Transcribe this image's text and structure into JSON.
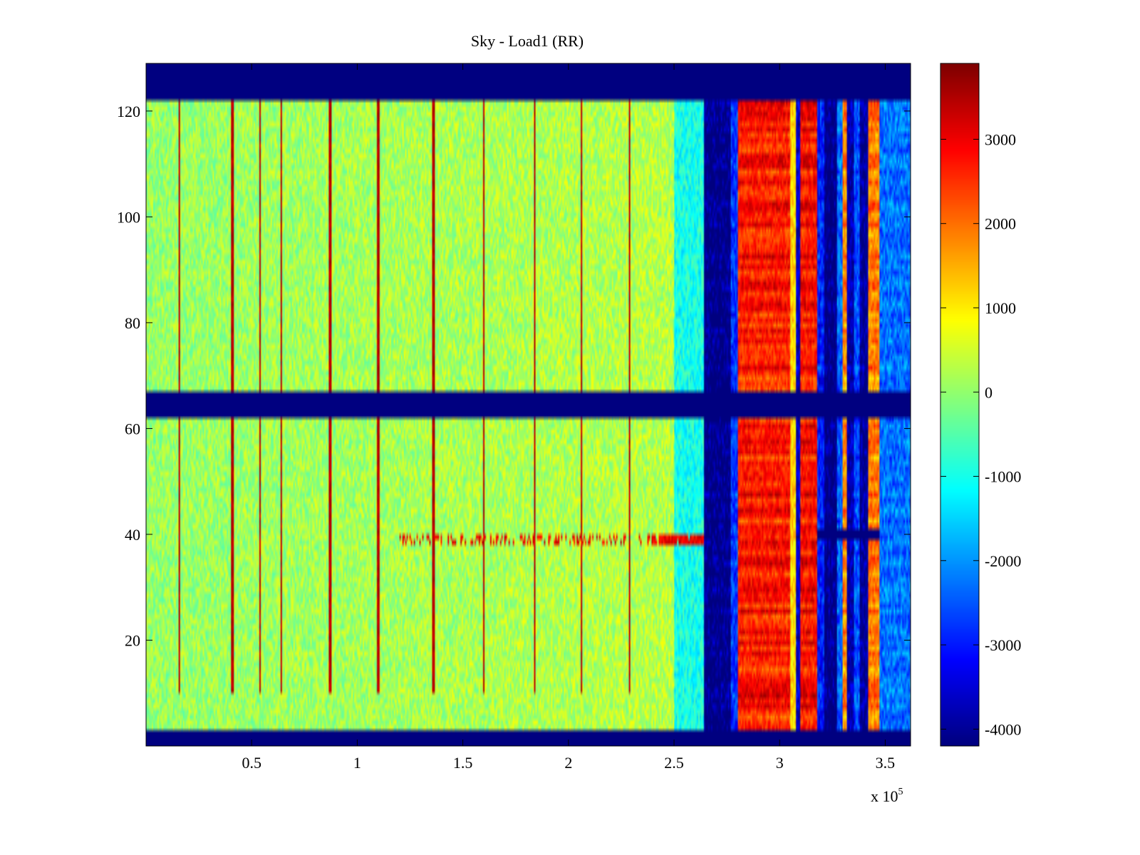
{
  "chart_data": {
    "type": "heatmap",
    "title": "Sky - Load1 (RR)",
    "xlabel": "",
    "ylabel": "",
    "x_multiplier_label": {
      "prefix": "x 10",
      "exponent": "5"
    },
    "xlim": [
      0,
      3.62
    ],
    "ylim": [
      0,
      129
    ],
    "x_ticks": [
      0.5,
      1,
      1.5,
      2,
      2.5,
      3,
      3.5
    ],
    "x_tick_labels": [
      "0.5",
      "1",
      "1.5",
      "2",
      "2.5",
      "3",
      "3.5"
    ],
    "y_ticks": [
      20,
      40,
      60,
      80,
      100,
      120
    ],
    "y_tick_labels": [
      "20",
      "40",
      "60",
      "80",
      "100",
      "120"
    ],
    "colorbar": {
      "colormap": "jet",
      "clim": [
        -4200,
        3900
      ],
      "ticks": [
        -4000,
        -3000,
        -2000,
        -1000,
        0,
        1000,
        2000,
        3000
      ],
      "tick_labels": [
        "-4000",
        "-3000",
        "-2000",
        "-1000",
        "0",
        "1000",
        "2000",
        "3000"
      ],
      "position": "right"
    },
    "masked_rows": [
      [
        0,
        3
      ],
      [
        62,
        67
      ],
      [
        122,
        129
      ]
    ],
    "rfi_row": 39,
    "spike_columns_x": [
      0.156,
      0.41,
      0.54,
      0.64,
      0.87,
      1.1,
      1.36,
      1.6,
      1.84,
      2.06,
      2.29
    ],
    "column_segments": [
      {
        "x_start": 0.0,
        "x_end": 2.5,
        "mean_value": 200
      },
      {
        "x_start": 2.5,
        "x_end": 2.64,
        "mean_value": -1100
      },
      {
        "x_start": 2.64,
        "x_end": 2.77,
        "mean_value": -4200
      },
      {
        "x_start": 2.77,
        "x_end": 2.8,
        "mean_value": -2800
      },
      {
        "x_start": 2.8,
        "x_end": 3.05,
        "mean_value": 2700
      },
      {
        "x_start": 3.05,
        "x_end": 3.08,
        "mean_value": 1000
      },
      {
        "x_start": 3.08,
        "x_end": 3.1,
        "mean_value": -3600
      },
      {
        "x_start": 3.1,
        "x_end": 3.18,
        "mean_value": 2800
      },
      {
        "x_start": 3.18,
        "x_end": 3.21,
        "mean_value": -3000
      },
      {
        "x_start": 3.21,
        "x_end": 3.27,
        "mean_value": -4200
      },
      {
        "x_start": 3.27,
        "x_end": 3.3,
        "mean_value": -2400
      },
      {
        "x_start": 3.3,
        "x_end": 3.32,
        "mean_value": 1800
      },
      {
        "x_start": 3.32,
        "x_end": 3.35,
        "mean_value": -3800
      },
      {
        "x_start": 3.35,
        "x_end": 3.38,
        "mean_value": -2600
      },
      {
        "x_start": 3.38,
        "x_end": 3.42,
        "mean_value": -4000
      },
      {
        "x_start": 3.42,
        "x_end": 3.47,
        "mean_value": 1900
      },
      {
        "x_start": 3.47,
        "x_end": 3.62,
        "mean_value": -2300
      }
    ]
  }
}
